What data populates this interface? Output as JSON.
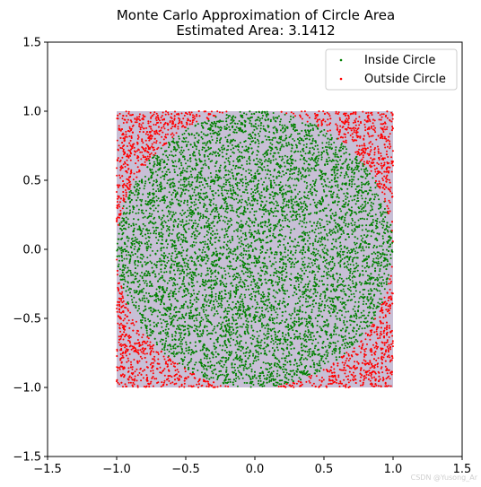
{
  "chart_data": {
    "type": "scatter",
    "title": "Monte Carlo Approximation of Circle Area",
    "subtitle": "Estimated Area: 3.1412",
    "xlim": [
      -1.5,
      1.5
    ],
    "ylim": [
      -1.5,
      1.5
    ],
    "x_ticks": [
      "-1.5",
      "-1.0",
      "-0.5",
      "0.0",
      "0.5",
      "1.0",
      "1.5"
    ],
    "y_ticks": [
      "-1.5",
      "-1.0",
      "-0.5",
      "0.0",
      "0.5",
      "1.0",
      "1.5"
    ],
    "xlabel": "",
    "ylabel": "",
    "grid": false,
    "legend_position": "top-right",
    "square_region": {
      "xmin": -1.0,
      "xmax": 1.0,
      "ymin": -1.0,
      "ymax": 1.0,
      "fill": "#c8bfd6"
    },
    "circle_region": {
      "center": [
        0,
        0
      ],
      "radius": 1.0
    },
    "num_points": 10000,
    "series": [
      {
        "name": "Inside Circle",
        "color": "#008000",
        "rule": "x^2 + y^2 <= 1"
      },
      {
        "name": "Outside Circle",
        "color": "#ff0000",
        "rule": "x^2 + y^2 > 1"
      }
    ]
  },
  "watermark": "CSDN @Yusong_Ar"
}
